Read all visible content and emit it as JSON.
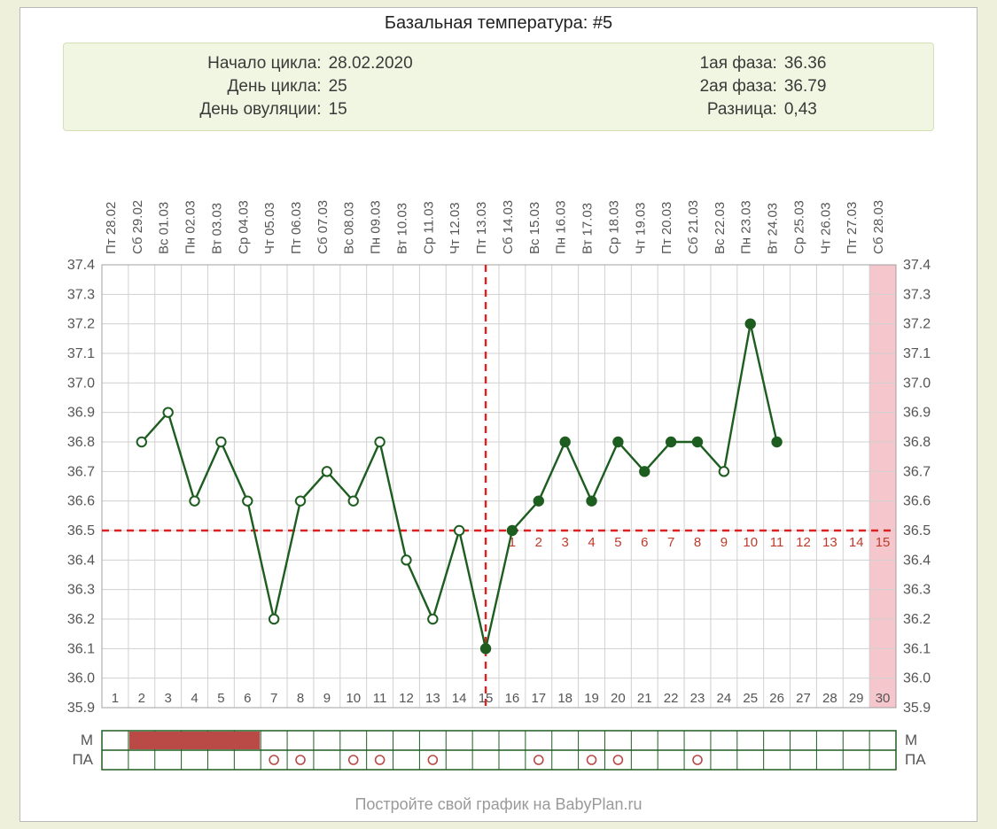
{
  "title": "Базальная температура: #5",
  "info_left": [
    {
      "label": "Начало цикла:",
      "value": "28.02.2020"
    },
    {
      "label": "День цикла:",
      "value": "25"
    },
    {
      "label": "День овуляции:",
      "value": "15"
    }
  ],
  "info_right": [
    {
      "label": "1ая фаза:",
      "value": "36.36"
    },
    {
      "label": "2ая фаза:",
      "value": "36.79"
    },
    {
      "label": "Разница:",
      "value": "0,43"
    }
  ],
  "chart": {
    "type": "line",
    "n_days": 30,
    "dates": [
      "Пт 28.02",
      "Сб 29.02",
      "Вс 01.03",
      "Пн 02.03",
      "Вт 03.03",
      "Ср 04.03",
      "Чт 05.03",
      "Пт 06.03",
      "Сб 07.03",
      "Вс 08.03",
      "Пн 09.03",
      "Вт 10.03",
      "Ср 11.03",
      "Чт 12.03",
      "Пт 13.03",
      "Сб 14.03",
      "Вс 15.03",
      "Пн 16.03",
      "Вт 17.03",
      "Ср 18.03",
      "Чт 19.03",
      "Пт 20.03",
      "Сб 21.03",
      "Вс 22.03",
      "Пн 23.03",
      "Вт 24.03",
      "Ср 25.03",
      "Чт 26.03",
      "Пт 27.03",
      "Сб 28.03"
    ],
    "y_min": 35.9,
    "y_max": 37.4,
    "y_step": 0.1,
    "values": [
      null,
      36.8,
      36.9,
      36.6,
      36.8,
      36.6,
      36.2,
      36.6,
      36.7,
      36.6,
      36.8,
      36.4,
      36.2,
      36.5,
      36.1,
      36.5,
      36.6,
      36.8,
      36.6,
      36.8,
      36.7,
      36.8,
      36.8,
      36.7,
      37.2,
      36.8,
      null,
      null,
      null,
      null
    ],
    "open_markers": [
      2,
      3,
      4,
      5,
      6,
      7,
      8,
      9,
      10,
      11,
      12,
      13,
      14,
      24
    ],
    "coverline": 36.5,
    "ovulation_day": 15,
    "phase2_numbers_color": "#c03a2b",
    "line_color": "#1e5d20",
    "line_width": 2.4,
    "marker_radius": 5.2,
    "grid_color": "#d0d0d0",
    "axis_text_color": "#555555",
    "dash_color": "#e02020",
    "pink_band_day": 30,
    "pink_band_color": "#f5c6cb",
    "row_labels": {
      "M": "М",
      "PA": "ПА"
    },
    "mens_days": [
      2,
      3,
      4,
      5,
      6
    ],
    "mens_color": "#b94a45",
    "pa_days": [
      7,
      8,
      10,
      11,
      13,
      17,
      19,
      20,
      23
    ],
    "pa_marker_color": "#b94a45",
    "row_border_color": "#1e5d20"
  },
  "footer": "Постройте свой график на BabyPlan.ru"
}
